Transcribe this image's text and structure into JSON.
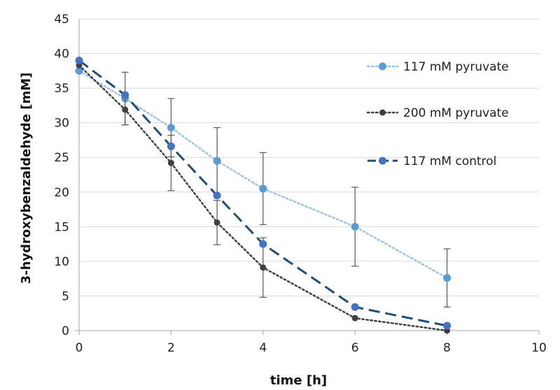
{
  "chart_data": {
    "type": "line",
    "xlabel": "time [h]",
    "ylabel": "3-hydroxybenzaldehyde  [mM]",
    "xlim": [
      0,
      10
    ],
    "ylim": [
      0,
      45
    ],
    "x_ticks": [
      0,
      2,
      4,
      6,
      8,
      10
    ],
    "y_ticks": [
      0,
      5,
      10,
      15,
      20,
      25,
      30,
      35,
      40,
      45
    ],
    "grid": "horizontal",
    "legend_position": "right",
    "series": [
      {
        "name": "117 mM pyruvate",
        "color": "#5B9BD5",
        "line_style": "dotted",
        "x": [
          0,
          1,
          2,
          3,
          4,
          6,
          8
        ],
        "y": [
          37.5,
          33.5,
          29.3,
          24.5,
          20.5,
          15.0,
          7.6
        ],
        "error": [
          null,
          3.8,
          4.2,
          4.8,
          5.2,
          5.7,
          4.2
        ]
      },
      {
        "name": "200 mM pyruvate",
        "color": "#404040",
        "line_style": "dotted",
        "x": [
          0,
          1,
          2,
          3,
          4,
          6,
          8
        ],
        "y": [
          38.3,
          31.9,
          24.2,
          15.6,
          9.1,
          1.8,
          0.0
        ],
        "error": [
          null,
          2.2,
          4.0,
          3.2,
          4.3,
          null,
          null
        ]
      },
      {
        "name": "117 mM control",
        "color": "#4472C4",
        "line_color": "#1F4E79",
        "line_style": "dashed",
        "x": [
          0,
          1,
          2,
          3,
          4,
          6,
          8
        ],
        "y": [
          39.0,
          34.0,
          26.6,
          19.5,
          12.5,
          3.4,
          0.7
        ],
        "error": [
          null,
          null,
          null,
          null,
          null,
          null,
          null
        ]
      }
    ]
  }
}
